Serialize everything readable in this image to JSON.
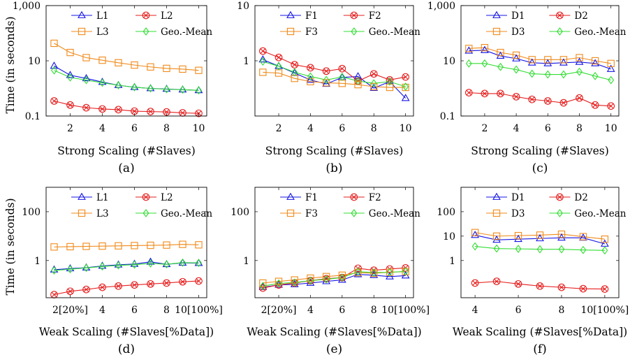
{
  "shared": {
    "ylabel": "Time (in seconds)",
    "strong_xlabel": "Strong Scaling (#Slaves)",
    "weak_xlabel": "Weak Scaling (#Slaves[%Data])"
  },
  "series_colors": {
    "series1": "#1515e6",
    "series2": "#e61e1e",
    "series3": "#f08a1a",
    "series4": "#33dd33"
  },
  "chart_data": [
    {
      "id": "a",
      "caption": "(a)",
      "type": "line",
      "ylog": true,
      "ylim": [
        0.1,
        1000
      ],
      "xlim": [
        0.5,
        10.5
      ],
      "yticks": [
        0.1,
        10,
        1000
      ],
      "ytick_labels": [
        "0.1",
        "10",
        "1,000"
      ],
      "xticks": [
        2,
        4,
        6,
        8,
        10
      ],
      "xtick_labels": [
        "2",
        "4",
        "6",
        "8",
        "10"
      ],
      "xlabel": "Strong Scaling (#Slaves)",
      "ylabel": "Time (in seconds)",
      "x": [
        1,
        2,
        3,
        4,
        5,
        6,
        7,
        8,
        9,
        10
      ],
      "series": [
        {
          "name": "L1",
          "marker": "triangle",
          "values": [
            6.5,
            3.0,
            2.3,
            1.7,
            1.3,
            1.1,
            1.0,
            0.95,
            0.9,
            0.85
          ]
        },
        {
          "name": "L2",
          "marker": "otimes",
          "values": [
            0.35,
            0.25,
            0.2,
            0.18,
            0.17,
            0.15,
            0.145,
            0.14,
            0.13,
            0.125
          ]
        },
        {
          "name": "L3",
          "marker": "square",
          "values": [
            43,
            20,
            13,
            10.5,
            8.5,
            7.0,
            6.0,
            5.3,
            5.0,
            4.5
          ]
        },
        {
          "name": "Geo.-Mean",
          "marker": "diamond",
          "values": [
            4.5,
            2.5,
            2.0,
            1.6,
            1.3,
            1.1,
            1.0,
            0.93,
            0.9,
            0.85
          ]
        }
      ]
    },
    {
      "id": "b",
      "caption": "(b)",
      "type": "line",
      "ylog": true,
      "ylim": [
        0.1,
        10
      ],
      "xlim": [
        0.5,
        10.5
      ],
      "yticks": [
        1,
        10
      ],
      "ytick_labels": [
        "1",
        "10"
      ],
      "xticks": [
        2,
        4,
        6,
        8,
        10
      ],
      "xtick_labels": [
        "2",
        "4",
        "6",
        "8",
        "10"
      ],
      "xlabel": "Strong Scaling (#Slaves)",
      "ylabel": "",
      "x": [
        1,
        2,
        3,
        4,
        5,
        6,
        7,
        8,
        9,
        10
      ],
      "series": [
        {
          "name": "F1",
          "marker": "triangle",
          "values": [
            1.05,
            0.8,
            0.6,
            0.45,
            0.38,
            0.5,
            0.52,
            0.32,
            0.42,
            0.21
          ]
        },
        {
          "name": "F2",
          "marker": "otimes",
          "values": [
            1.5,
            1.15,
            0.85,
            0.75,
            0.65,
            0.72,
            0.43,
            0.58,
            0.45,
            0.51
          ]
        },
        {
          "name": "F3",
          "marker": "square",
          "values": [
            0.62,
            0.6,
            0.48,
            0.42,
            0.4,
            0.39,
            0.37,
            0.34,
            0.33,
            0.33
          ]
        },
        {
          "name": "Geo.-Mean",
          "marker": "diamond",
          "values": [
            0.97,
            0.8,
            0.62,
            0.52,
            0.45,
            0.51,
            0.43,
            0.39,
            0.42,
            0.34
          ]
        }
      ]
    },
    {
      "id": "c",
      "caption": "(c)",
      "type": "line",
      "ylog": true,
      "ylim": [
        0.1,
        1000
      ],
      "xlim": [
        0.5,
        10.5
      ],
      "yticks": [
        0.1,
        10,
        1000
      ],
      "ytick_labels": [
        "0.1",
        "10",
        "1,000"
      ],
      "xticks": [
        2,
        4,
        6,
        8,
        10
      ],
      "xtick_labels": [
        "2",
        "4",
        "6",
        "8",
        "10"
      ],
      "xlabel": "Strong Scaling (#Slaves)",
      "ylabel": "",
      "x": [
        1,
        2,
        3,
        4,
        5,
        6,
        7,
        8,
        9,
        10
      ],
      "series": [
        {
          "name": "D1",
          "marker": "triangle",
          "values": [
            23,
            24,
            15,
            12,
            8.5,
            8,
            8.5,
            9,
            8,
            5
          ]
        },
        {
          "name": "D2",
          "marker": "otimes",
          "values": [
            0.7,
            0.65,
            0.65,
            0.5,
            0.4,
            0.35,
            0.3,
            0.45,
            0.25,
            0.23
          ]
        },
        {
          "name": "D3",
          "marker": "square",
          "values": [
            28,
            30,
            20,
            16,
            11,
            11,
            11,
            13,
            10,
            8
          ]
        },
        {
          "name": "Geo.-Mean",
          "marker": "diamond",
          "values": [
            8,
            8,
            6,
            4.8,
            3.4,
            3.2,
            3.2,
            4.0,
            2.8,
            2.0
          ]
        }
      ]
    },
    {
      "id": "d",
      "caption": "(d)",
      "type": "line",
      "ylog": true,
      "ylim": [
        0.03,
        1000
      ],
      "xlim": [
        0.5,
        10.5
      ],
      "yticks": [
        1,
        100
      ],
      "ytick_labels": [
        "1",
        "100"
      ],
      "xticks": [
        2,
        4,
        6,
        8,
        10
      ],
      "xtick_labels": [
        "2[20%]",
        "4",
        "6",
        "8",
        "10[100%]"
      ],
      "xlabel": "Weak Scaling (#Slaves[%Data])",
      "ylabel": "Time (in seconds)",
      "x": [
        1,
        2,
        3,
        4,
        5,
        6,
        7,
        8,
        9,
        10
      ],
      "series": [
        {
          "name": "L1",
          "marker": "triangle",
          "values": [
            0.42,
            0.47,
            0.51,
            0.6,
            0.67,
            0.72,
            0.88,
            0.7,
            0.8,
            0.78
          ]
        },
        {
          "name": "L2",
          "marker": "otimes",
          "values": [
            0.04,
            0.055,
            0.065,
            0.08,
            0.09,
            0.1,
            0.11,
            0.12,
            0.135,
            0.145
          ]
        },
        {
          "name": "L3",
          "marker": "square",
          "values": [
            3.6,
            3.7,
            3.8,
            3.9,
            4.0,
            4.1,
            4.2,
            4.3,
            4.6,
            4.4
          ]
        },
        {
          "name": "Geo.-Mean",
          "marker": "diamond",
          "values": [
            0.39,
            0.44,
            0.5,
            0.57,
            0.63,
            0.68,
            0.76,
            0.7,
            0.82,
            0.8
          ]
        }
      ]
    },
    {
      "id": "e",
      "caption": "(e)",
      "type": "line",
      "ylog": true,
      "ylim": [
        0.03,
        1000
      ],
      "xlim": [
        0.5,
        10.5
      ],
      "yticks": [
        1,
        100
      ],
      "ytick_labels": [
        "1",
        "100"
      ],
      "xticks": [
        2,
        4,
        6,
        8,
        10
      ],
      "xtick_labels": [
        "2[20%]",
        "4",
        "6",
        "8",
        "10[100%]"
      ],
      "xlabel": "Weak Scaling (#Slaves[%Data])",
      "ylabel": "",
      "x": [
        1,
        2,
        3,
        4,
        5,
        6,
        7,
        8,
        9,
        10
      ],
      "series": [
        {
          "name": "F1",
          "marker": "triangle",
          "values": [
            0.08,
            0.1,
            0.105,
            0.12,
            0.14,
            0.16,
            0.27,
            0.25,
            0.22,
            0.24
          ]
        },
        {
          "name": "F2",
          "marker": "otimes",
          "values": [
            0.075,
            0.1,
            0.12,
            0.15,
            0.18,
            0.2,
            0.48,
            0.4,
            0.45,
            0.5
          ]
        },
        {
          "name": "F3",
          "marker": "square",
          "values": [
            0.12,
            0.14,
            0.16,
            0.19,
            0.22,
            0.25,
            0.32,
            0.3,
            0.33,
            0.35
          ]
        },
        {
          "name": "Geo.-Mean",
          "marker": "diamond",
          "values": [
            0.09,
            0.115,
            0.125,
            0.15,
            0.17,
            0.2,
            0.35,
            0.32,
            0.33,
            0.36
          ]
        }
      ]
    },
    {
      "id": "f",
      "caption": "(f)",
      "type": "line",
      "ylog": true,
      "ylim": [
        0.03,
        1000
      ],
      "xlim": [
        3.35,
        10.65
      ],
      "yticks": [
        1,
        10,
        100
      ],
      "ytick_labels": [
        "1",
        "10",
        "100"
      ],
      "xticks": [
        4,
        6,
        8,
        10
      ],
      "xtick_labels": [
        "4",
        "6",
        "8",
        "10[100%]"
      ],
      "xlabel": "Weak Scaling (#Slaves[%Data])",
      "ylabel": "",
      "x": [
        4,
        5,
        6,
        7,
        8,
        9,
        10
      ],
      "series": [
        {
          "name": "D1",
          "marker": "triangle",
          "values": [
            11,
            7,
            7.5,
            8,
            8.5,
            8.5,
            4.8
          ]
        },
        {
          "name": "D2",
          "marker": "otimes",
          "values": [
            0.12,
            0.14,
            0.11,
            0.09,
            0.08,
            0.07,
            0.068
          ]
        },
        {
          "name": "D3",
          "marker": "square",
          "values": [
            14,
            10,
            10.5,
            11,
            12,
            9.5,
            7.5
          ]
        },
        {
          "name": "Geo.-Mean",
          "marker": "diamond",
          "values": [
            3.8,
            3.1,
            3.0,
            2.9,
            2.9,
            2.7,
            2.6
          ]
        }
      ]
    }
  ]
}
